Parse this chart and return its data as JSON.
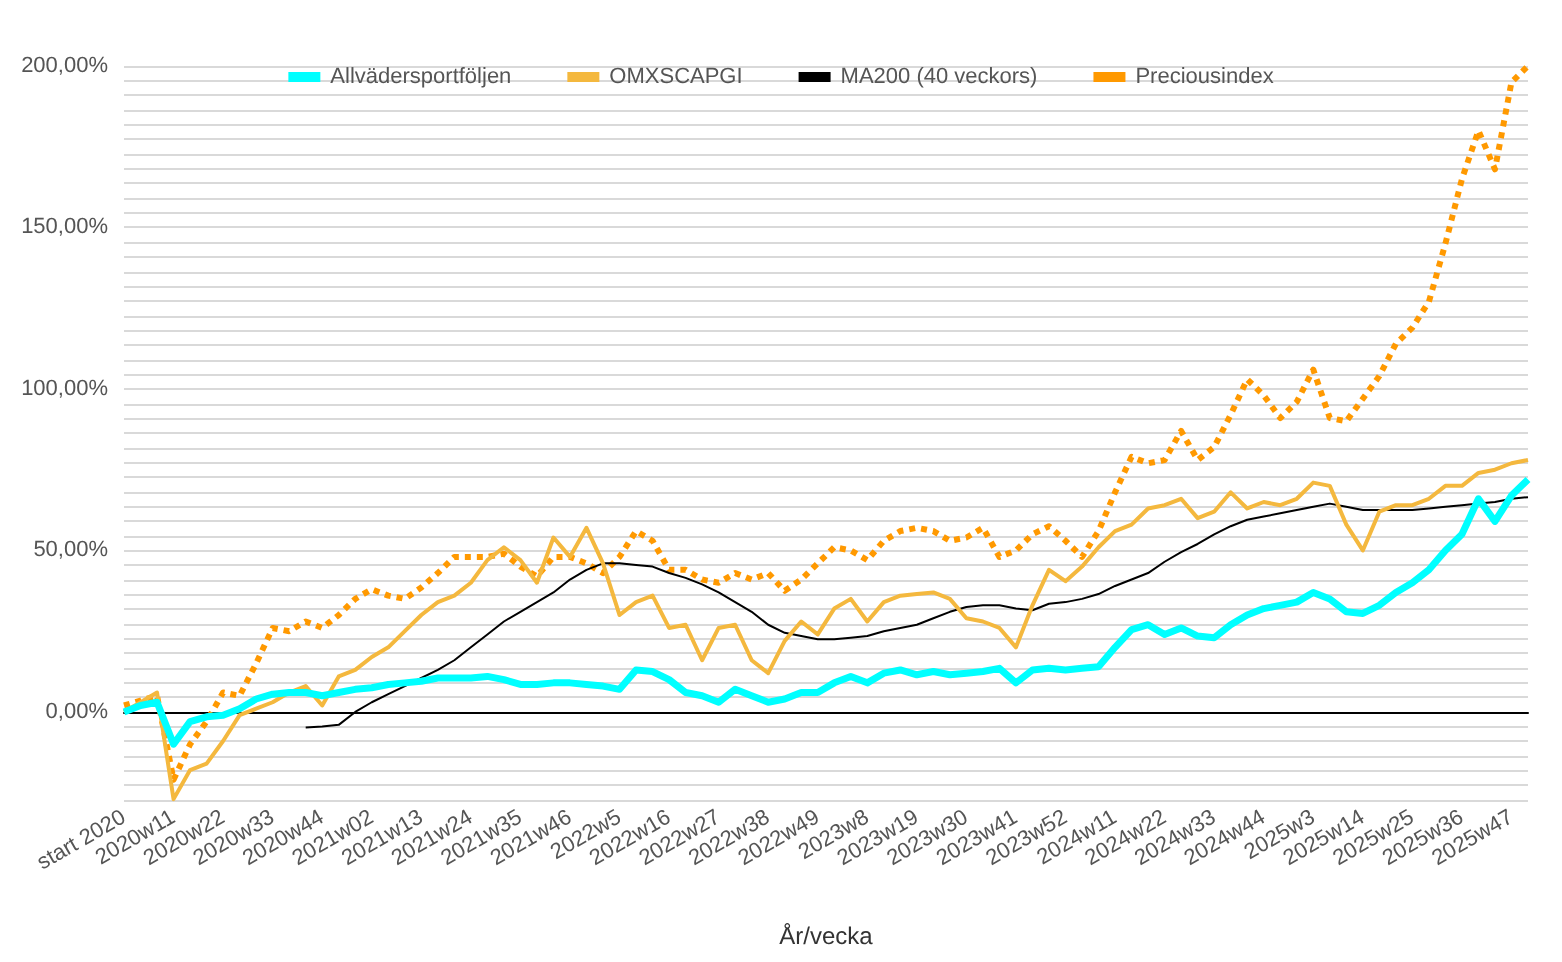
{
  "chart_data": {
    "type": "line",
    "xlabel": "År/vecka",
    "legend": "top",
    "grid": true,
    "marker": "none",
    "categories": [
      "start 2020",
      null,
      null,
      "2020w11",
      null,
      null,
      "2020w22",
      null,
      null,
      "2020w33",
      null,
      null,
      "2020w44",
      null,
      null,
      "2021w02",
      null,
      null,
      "2021w13",
      null,
      null,
      "2021w24",
      null,
      null,
      "2021w35",
      null,
      null,
      "2021w46",
      null,
      null,
      "2022w5",
      null,
      null,
      "2022w16",
      null,
      null,
      "2022w27",
      null,
      null,
      "2022w38",
      null,
      null,
      "2022w49",
      null,
      null,
      "2023w8",
      null,
      null,
      "2023w19",
      null,
      null,
      "2023w30",
      null,
      null,
      "2023w41",
      null,
      null,
      "2023w52",
      null,
      null,
      "2024w11",
      null,
      null,
      "2024w22",
      null,
      null,
      "2024w33",
      null,
      null,
      "2024w44",
      null,
      null,
      "2025w3",
      null,
      null,
      "2025w14",
      null,
      null,
      "2025w25",
      null,
      null,
      "2025w36",
      null,
      null,
      "2025w47",
      null
    ],
    "ylim": [
      -27.27,
      200
    ],
    "yticks": [
      {
        "value": -27.27,
        "label": null
      },
      {
        "value": -22.73,
        "label": null
      },
      {
        "value": -18.18,
        "label": null
      },
      {
        "value": -13.64,
        "label": null
      },
      {
        "value": -9.09,
        "label": null
      },
      {
        "value": -4.55,
        "label": null
      },
      {
        "value": 0,
        "label": "0,00%"
      },
      {
        "value": 4.55,
        "label": null
      },
      {
        "value": 9.09,
        "label": null
      },
      {
        "value": 13.64,
        "label": null
      },
      {
        "value": 18.18,
        "label": null
      },
      {
        "value": 22.73,
        "label": null
      },
      {
        "value": 27.27,
        "label": null
      },
      {
        "value": 31.82,
        "label": null
      },
      {
        "value": 36.36,
        "label": null
      },
      {
        "value": 40.91,
        "label": null
      },
      {
        "value": 45.45,
        "label": null
      },
      {
        "value": 50,
        "label": "50,00%"
      },
      {
        "value": 54.55,
        "label": null
      },
      {
        "value": 59.09,
        "label": null
      },
      {
        "value": 63.64,
        "label": null
      },
      {
        "value": 68.18,
        "label": null
      },
      {
        "value": 72.73,
        "label": null
      },
      {
        "value": 77.27,
        "label": null
      },
      {
        "value": 81.82,
        "label": null
      },
      {
        "value": 86.36,
        "label": null
      },
      {
        "value": 90.91,
        "label": null
      },
      {
        "value": 95.45,
        "label": null
      },
      {
        "value": 100,
        "label": "100,00%"
      },
      {
        "value": 104.55,
        "label": null
      },
      {
        "value": 109.09,
        "label": null
      },
      {
        "value": 113.64,
        "label": null
      },
      {
        "value": 118.18,
        "label": null
      },
      {
        "value": 122.73,
        "label": null
      },
      {
        "value": 127.27,
        "label": null
      },
      {
        "value": 131.82,
        "label": null
      },
      {
        "value": 136.36,
        "label": null
      },
      {
        "value": 140.91,
        "label": null
      },
      {
        "value": 145.45,
        "label": null
      },
      {
        "value": 150,
        "label": "150,00%"
      },
      {
        "value": 154.55,
        "label": null
      },
      {
        "value": 159.09,
        "label": null
      },
      {
        "value": 163.64,
        "label": null
      },
      {
        "value": 168.18,
        "label": null
      },
      {
        "value": 172.73,
        "label": null
      },
      {
        "value": 177.27,
        "label": null
      },
      {
        "value": 181.82,
        "label": null
      },
      {
        "value": 186.36,
        "label": null
      },
      {
        "value": 190.91,
        "label": null
      },
      {
        "value": 195.45,
        "label": null
      },
      {
        "value": 200,
        "label": "200,00%"
      }
    ],
    "series": [
      {
        "name": "Allvädersportföljen",
        "color": "#00ffff",
        "line_style": "solid",
        "values": [
          0,
          2,
          3,
          -10,
          -3,
          -1.5,
          -1,
          1,
          4,
          5.5,
          6,
          6,
          5,
          6,
          7,
          7.5,
          8.5,
          9,
          9.5,
          10.5,
          10.5,
          10.5,
          11,
          10,
          8.5,
          8.5,
          9,
          9,
          8.5,
          8,
          7,
          13,
          12.5,
          10,
          6,
          5,
          3,
          7,
          5,
          3,
          4,
          6,
          6,
          9,
          11,
          9,
          12,
          13,
          11.5,
          12.5,
          11.5,
          12,
          12.5,
          13.5,
          9,
          13,
          13.5,
          13,
          13.5,
          14,
          20,
          25.5,
          27,
          24,
          26,
          23.5,
          23,
          27,
          30,
          32,
          33,
          34,
          37,
          35,
          31,
          30.5,
          33,
          37,
          40,
          44,
          50,
          55,
          66,
          59,
          67,
          72
        ]
      },
      {
        "name": "OMXSCAPGI",
        "color": "#f4b83e",
        "line_style": "solid",
        "values": [
          0,
          3,
          6,
          -27,
          -18,
          -16,
          -9,
          -1,
          1,
          3,
          6,
          8,
          2,
          11,
          13,
          17,
          20,
          25,
          30,
          34,
          36,
          40,
          47,
          51,
          47,
          40,
          54,
          48,
          57,
          46,
          30,
          34,
          36,
          26,
          27,
          16,
          26,
          27,
          16,
          12,
          22,
          28,
          24,
          32,
          35,
          28,
          34,
          36,
          36.5,
          37,
          35,
          29,
          28,
          26,
          20,
          33,
          44,
          40.5,
          45,
          51,
          56,
          58,
          63,
          64,
          66,
          60,
          62,
          68,
          63,
          65,
          64,
          66,
          71,
          70,
          58,
          50,
          62,
          64,
          64,
          66,
          70,
          70,
          74,
          75,
          77,
          78
        ]
      },
      {
        "name": "MA200 (40 veckors)",
        "color": "#000000",
        "line_style": "solid",
        "values": [
          null,
          null,
          null,
          null,
          null,
          null,
          null,
          null,
          null,
          null,
          null,
          -4.8,
          -4.5,
          -4,
          0,
          3,
          5.5,
          8,
          10.5,
          13,
          16,
          20,
          24,
          28,
          31,
          34,
          37,
          41,
          44,
          46,
          46,
          45.5,
          45,
          43,
          41.5,
          39.5,
          37,
          34,
          31,
          27,
          24.5,
          23.5,
          22.5,
          22.5,
          23,
          23.5,
          25,
          26,
          27,
          29,
          31,
          32.5,
          33,
          33,
          32,
          31.5,
          33.5,
          34,
          35,
          36.5,
          39,
          41,
          43,
          46.5,
          49.5,
          52,
          55,
          57.5,
          59.5,
          60.5,
          61.5,
          62.5,
          63.5,
          64.5,
          63.5,
          62.5,
          62.5,
          62.5,
          62.5,
          63,
          63.5,
          64,
          64.5,
          65,
          66,
          66.5
        ]
      },
      {
        "name": "Preciousindex",
        "color": "#ff9900",
        "line_style": "dotted",
        "values": [
          2,
          3.5,
          5,
          -21,
          -10,
          -3,
          6,
          5,
          15,
          26,
          25,
          28,
          26,
          30,
          35,
          38,
          36,
          35,
          38.5,
          43,
          48,
          48,
          48,
          49,
          45,
          42,
          48,
          48,
          46,
          43,
          48,
          56,
          53,
          44,
          44,
          41,
          40,
          43,
          41,
          43,
          37.5,
          41,
          46,
          51,
          50,
          47,
          53,
          56,
          57,
          56,
          53,
          54,
          57,
          48,
          50,
          55,
          57.5,
          53,
          48,
          56,
          68,
          79,
          77,
          78,
          87,
          78,
          82,
          92,
          103,
          98,
          91,
          96,
          106,
          91,
          90,
          97,
          104,
          114,
          119,
          127,
          145,
          165,
          180,
          168,
          195,
          200
        ]
      }
    ]
  }
}
